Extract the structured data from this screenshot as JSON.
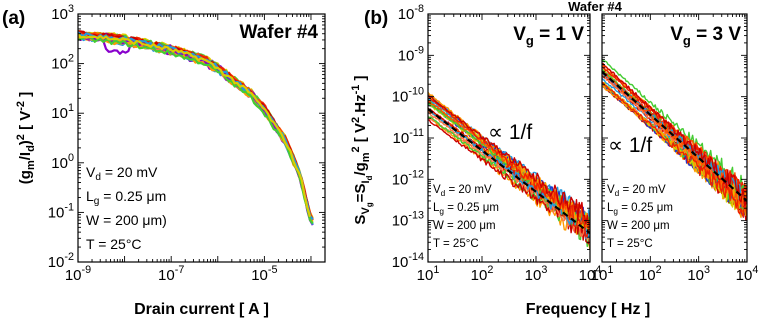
{
  "chart_data": [
    {
      "type": "line",
      "panel_label": "(a)",
      "annotation_title": "Wafer #4",
      "xlabel": "Drain current [ A ]",
      "ylabel_parts": {
        "pre": "(g",
        "sub1": "m",
        "mid": "/I",
        "sub2": "d",
        "post": ")",
        "sup": "2",
        "unit_pre": " [ V",
        "unit_sup": "-2",
        "unit_post": " ]"
      },
      "xscale": "log",
      "yscale": "log",
      "xlim": [
        1e-09,
        0.0002
      ],
      "ylim": [
        0.01,
        1000
      ],
      "xticks": [
        {
          "v": 1e-09,
          "mant": "10",
          "exp": "-9"
        },
        {
          "v": 1e-07,
          "mant": "10",
          "exp": "-7"
        },
        {
          "v": 1e-05,
          "mant": "10",
          "exp": "-5"
        }
      ],
      "yticks": [
        {
          "v": 0.01,
          "mant": "10",
          "exp": "-2"
        },
        {
          "v": 0.1,
          "mant": "10",
          "exp": "-1"
        },
        {
          "v": 1,
          "mant": "10",
          "exp": "0"
        },
        {
          "v": 10,
          "mant": "10",
          "exp": "1"
        },
        {
          "v": 100,
          "mant": "10",
          "exp": "2"
        },
        {
          "v": 1000,
          "mant": "10",
          "exp": "3"
        }
      ],
      "conditions": [
        {
          "base": "V",
          "sub": "d",
          "rest": " = 20 mV"
        },
        {
          "base": "L",
          "sub": "g",
          "rest": " = 0.25 μm"
        },
        {
          "base": "W = 200 μm)",
          "sub": "",
          "rest": ""
        },
        {
          "base": "T = 25°C",
          "sub": "",
          "rest": ""
        }
      ],
      "series_colors": [
        "#8800cc",
        "#2299dd",
        "#44cc33",
        "#ddcc00",
        "#ff9900",
        "#ff5500",
        "#ee2200",
        "#cc0000",
        "#ff7744"
      ],
      "curve": {
        "x": [
          1e-09,
          1e-08,
          1e-07,
          5e-07,
          1e-06,
          5e-06,
          1e-05,
          3e-05,
          6e-05,
          0.0001
        ],
        "y": [
          380,
          300,
          190,
          120,
          80,
          25,
          12,
          2.5,
          0.5,
          0.07
        ]
      }
    },
    {
      "type": "line",
      "panel_label": "(b)",
      "annotation_title": "Wafer #4",
      "xlabel": "Frequency [ Hz ]",
      "ylabel_parts": {
        "s1": "S",
        "s1sub": "V",
        "s1subsub": "g",
        "eq": "=S",
        "s2sub": "I",
        "s2subsub": "d",
        "div": "/g",
        "s3sub": "m",
        "sup": "2",
        "unit": " [ V",
        "unit_sup": "2",
        "unit_mid": ".Hz",
        "unit_sup2": "-1",
        "unit_end": " ]"
      },
      "xscale": "log",
      "yscale": "log",
      "xlim": [
        10,
        10000
      ],
      "ylim": [
        1e-14,
        1e-08
      ],
      "xticks": [
        {
          "v": 10,
          "mant": "10",
          "exp": "1"
        },
        {
          "v": 100,
          "mant": "10",
          "exp": "2"
        },
        {
          "v": 1000,
          "mant": "10",
          "exp": "3"
        },
        {
          "v": 10000,
          "mant": "10",
          "exp": "4"
        }
      ],
      "yticks": [
        {
          "v": 1e-14,
          "mant": "10",
          "exp": "-14"
        },
        {
          "v": 1e-13,
          "mant": "10",
          "exp": "-13"
        },
        {
          "v": 1e-12,
          "mant": "10",
          "exp": "-12"
        },
        {
          "v": 1e-11,
          "mant": "10",
          "exp": "-11"
        },
        {
          "v": 1e-10,
          "mant": "10",
          "exp": "-10"
        },
        {
          "v": 1e-09,
          "mant": "10",
          "exp": "-9"
        },
        {
          "v": 1e-08,
          "mant": "10",
          "exp": "-8"
        }
      ],
      "subpanels": [
        {
          "vg_label": {
            "base": "V",
            "sub": "g",
            "rest": " = 1 V"
          },
          "fit_text": "∝ 1/f",
          "center_y_at_10Hz": 6e-11,
          "center_y_at_10kHz": 6e-14,
          "fit": {
            "x": [
              10,
              10000
            ],
            "y": [
              5e-11,
              5e-14
            ]
          }
        },
        {
          "vg_label": {
            "base": "V",
            "sub": "g",
            "rest": " = 3 V"
          },
          "fit_text": "∝ 1/f",
          "center_y_at_10Hz": 4e-10,
          "center_y_at_10kHz": 3e-13,
          "fit": {
            "x": [
              10,
              10000
            ],
            "y": [
              4e-10,
              3e-13
            ]
          }
        }
      ],
      "conditions": [
        {
          "base": "V",
          "sub": "d",
          "rest": " = 20 mV"
        },
        {
          "base": "L",
          "sub": "g",
          "rest": " = 0.25 μm"
        },
        {
          "base": "W = 200 μm",
          "sub": "",
          "rest": ""
        },
        {
          "base": "T = 25°C",
          "sub": "",
          "rest": ""
        }
      ],
      "series_colors": [
        "#2233cc",
        "#2299dd",
        "#44cc33",
        "#ddcc00",
        "#ff9900",
        "#ff5500",
        "#ee2200",
        "#cc0000",
        "#ff7744"
      ]
    }
  ]
}
